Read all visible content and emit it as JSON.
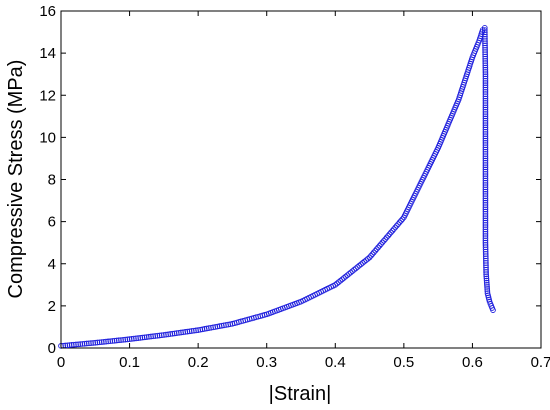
{
  "chart_data": {
    "type": "scatter",
    "title": "",
    "xlabel": "|Strain|",
    "ylabel": "Compressive Stress (MPa)",
    "xlim": [
      0,
      0.7
    ],
    "ylim": [
      0,
      16
    ],
    "xticks": [
      0,
      0.1,
      0.2,
      0.3,
      0.4,
      0.5,
      0.6,
      0.7
    ],
    "yticks": [
      0,
      2,
      4,
      6,
      8,
      10,
      12,
      14,
      16
    ],
    "xtick_labels": [
      "0",
      "0.1",
      "0.2",
      "0.3",
      "0.4",
      "0.5",
      "0.6",
      "0.7"
    ],
    "ytick_labels": [
      "0",
      "2",
      "4",
      "6",
      "8",
      "10",
      "12",
      "14",
      "16"
    ],
    "grid": false,
    "marker": "open-circle",
    "series": [
      {
        "color": "#2020dd",
        "x": [
          0.0,
          0.05,
          0.1,
          0.15,
          0.2,
          0.25,
          0.3,
          0.35,
          0.4,
          0.45,
          0.5,
          0.55,
          0.58,
          0.6,
          0.61,
          0.615,
          0.618,
          0.619,
          0.619,
          0.619,
          0.619,
          0.619,
          0.62,
          0.622,
          0.625,
          0.63
        ],
        "y": [
          0.1,
          0.25,
          0.42,
          0.62,
          0.85,
          1.15,
          1.6,
          2.2,
          3.0,
          4.3,
          6.2,
          9.5,
          11.8,
          13.8,
          14.6,
          15.1,
          15.2,
          13.0,
          11.0,
          9.0,
          7.0,
          5.0,
          3.5,
          2.6,
          2.2,
          1.8
        ]
      }
    ]
  }
}
